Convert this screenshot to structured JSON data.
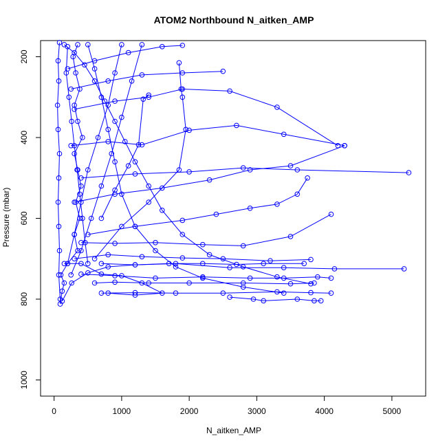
{
  "chart_data": {
    "type": "line",
    "title": "ATOM2 Northbound N_aitken_AMP",
    "xlabel": "N_aitken_AMP",
    "ylabel": "Pressure (mbar)",
    "xlim": [
      -200,
      5500
    ],
    "ylim": [
      1040,
      160
    ],
    "y_reversed": true,
    "grid": false,
    "legend": "none",
    "color": "#0000ff",
    "marker": "open-circle",
    "x_ticks": [
      0,
      1000,
      2000,
      3000,
      4000,
      5000
    ],
    "x_tick_labels": [
      "0",
      "1000",
      "2000",
      "3000",
      "4000",
      "5000"
    ],
    "y_ticks": [
      200,
      400,
      600,
      800,
      1000
    ],
    "y_tick_labels": [
      "200",
      "400",
      "600",
      "800",
      "1000"
    ],
    "series": [
      {
        "points": [
          [
            90,
            812
          ],
          [
            120,
            780
          ],
          [
            150,
            760
          ],
          [
            100,
            740
          ],
          [
            200,
            712
          ],
          [
            350,
            680
          ],
          [
            300,
            640
          ],
          [
            380,
            600
          ],
          [
            320,
            560
          ],
          [
            400,
            520
          ],
          [
            350,
            480
          ],
          [
            300,
            440
          ],
          [
            420,
            400
          ],
          [
            350,
            360
          ],
          [
            300,
            320
          ],
          [
            380,
            280
          ],
          [
            320,
            240
          ],
          [
            280,
            200
          ],
          [
            350,
            170
          ]
        ]
      },
      {
        "points": [
          [
            120,
            805
          ],
          [
            260,
            760
          ],
          [
            500,
            735
          ],
          [
            800,
            720
          ],
          [
            1200,
            715
          ],
          [
            1800,
            712
          ],
          [
            2600,
            722
          ],
          [
            3400,
            722
          ],
          [
            4150,
            725
          ],
          [
            5180,
            725
          ]
        ]
      },
      {
        "points": [
          [
            600,
            760
          ],
          [
            900,
            758
          ],
          [
            1400,
            760
          ],
          [
            2000,
            760
          ],
          [
            2800,
            760
          ],
          [
            3500,
            762
          ],
          [
            3850,
            760
          ]
        ]
      },
      {
        "points": [
          [
            700,
            785
          ],
          [
            1200,
            784
          ],
          [
            1800,
            785
          ],
          [
            2500,
            785
          ],
          [
            3300,
            782
          ],
          [
            3800,
            784
          ],
          [
            4100,
            785
          ]
        ]
      },
      {
        "points": [
          [
            2600,
            795
          ],
          [
            2950,
            800
          ],
          [
            3100,
            804
          ],
          [
            3600,
            800
          ],
          [
            3850,
            804
          ],
          [
            3950,
            804
          ]
        ]
      },
      {
        "points": [
          [
            400,
            738
          ],
          [
            900,
            742
          ],
          [
            1500,
            748
          ],
          [
            2200,
            745
          ],
          [
            2900,
            748
          ],
          [
            3400,
            748
          ],
          [
            3900,
            745
          ],
          [
            4100,
            748
          ]
        ]
      },
      {
        "points": [
          [
            300,
            700
          ],
          [
            800,
            690
          ],
          [
            1300,
            695
          ],
          [
            1900,
            698
          ],
          [
            2500,
            700
          ],
          [
            3200,
            705
          ],
          [
            3800,
            702
          ]
        ]
      },
      {
        "points": [
          [
            400,
            660
          ],
          [
            900,
            662
          ],
          [
            1500,
            660
          ],
          [
            2200,
            665
          ],
          [
            2800,
            668
          ],
          [
            3500,
            645
          ],
          [
            4100,
            590
          ]
        ]
      },
      {
        "points": [
          [
            500,
            640
          ],
          [
            1200,
            620
          ],
          [
            1900,
            605
          ],
          [
            2400,
            590
          ],
          [
            2900,
            575
          ],
          [
            3300,
            565
          ],
          [
            3600,
            540
          ],
          [
            3750,
            500
          ]
        ]
      },
      {
        "points": [
          [
            300,
            560
          ],
          [
            900,
            540
          ],
          [
            1600,
            525
          ],
          [
            2300,
            505
          ],
          [
            2900,
            480
          ],
          [
            3500,
            470
          ],
          [
            4300,
            420
          ]
        ]
      },
      {
        "points": [
          [
            400,
            500
          ],
          [
            1200,
            490
          ],
          [
            2000,
            485
          ],
          [
            2800,
            475
          ],
          [
            3600,
            480
          ],
          [
            5250,
            487
          ]
        ]
      },
      {
        "points": [
          [
            250,
            420
          ],
          [
            800,
            410
          ],
          [
            1300,
            418
          ],
          [
            2000,
            382
          ],
          [
            2700,
            370
          ],
          [
            3400,
            392
          ],
          [
            4300,
            420
          ]
        ]
      },
      {
        "points": [
          [
            300,
            330
          ],
          [
            900,
            310
          ],
          [
            1400,
            300
          ],
          [
            1900,
            280
          ],
          [
            2600,
            285
          ],
          [
            3300,
            325
          ],
          [
            4200,
            420
          ]
        ]
      },
      {
        "points": [
          [
            250,
            280
          ],
          [
            800,
            260
          ],
          [
            1300,
            245
          ],
          [
            1900,
            240
          ],
          [
            2500,
            236
          ]
        ]
      },
      {
        "points": [
          [
            200,
            230
          ],
          [
            600,
            210
          ],
          [
            1100,
            190
          ],
          [
            1600,
            175
          ],
          [
            1900,
            172
          ]
        ]
      },
      {
        "points": [
          [
            150,
            170
          ],
          [
            300,
            190
          ],
          [
            450,
            220
          ],
          [
            600,
            260
          ],
          [
            750,
            310
          ],
          [
            900,
            360
          ],
          [
            1050,
            410
          ],
          [
            1200,
            460
          ],
          [
            1400,
            520
          ],
          [
            1600,
            580
          ],
          [
            1900,
            640
          ],
          [
            2300,
            690
          ],
          [
            2800,
            720
          ],
          [
            3300,
            745
          ],
          [
            3800,
            762
          ]
        ]
      },
      {
        "points": [
          [
            500,
            170
          ],
          [
            600,
            230
          ],
          [
            700,
            300
          ],
          [
            800,
            380
          ],
          [
            900,
            460
          ],
          [
            1000,
            540
          ],
          [
            1200,
            620
          ],
          [
            1500,
            680
          ],
          [
            1800,
            720
          ],
          [
            2200,
            748
          ],
          [
            2800,
            770
          ],
          [
            3400,
            785
          ]
        ]
      },
      {
        "points": [
          [
            1000,
            170
          ],
          [
            900,
            240
          ],
          [
            800,
            320
          ],
          [
            650,
            400
          ],
          [
            500,
            480
          ],
          [
            400,
            560
          ],
          [
            300,
            640
          ],
          [
            200,
            712
          ]
        ]
      },
      {
        "points": [
          [
            1300,
            170
          ],
          [
            1150,
            260
          ],
          [
            1000,
            350
          ],
          [
            850,
            440
          ],
          [
            700,
            520
          ],
          [
            550,
            600
          ],
          [
            400,
            680
          ],
          [
            250,
            740
          ]
        ]
      },
      {
        "points": [
          [
            1400,
            295
          ],
          [
            1320,
            305
          ],
          [
            1250,
            418
          ],
          [
            1100,
            470
          ],
          [
            900,
            530
          ],
          [
            700,
            600
          ]
        ]
      },
      {
        "points": [
          [
            1850,
            215
          ],
          [
            1880,
            280
          ],
          [
            1900,
            300
          ],
          [
            1950,
            380
          ],
          [
            1850,
            480
          ],
          [
            1400,
            560
          ],
          [
            1000,
            620
          ],
          [
            600,
            700
          ]
        ]
      },
      {
        "points": [
          [
            80,
            165
          ],
          [
            60,
            210
          ],
          [
            70,
            260
          ],
          [
            50,
            320
          ],
          [
            60,
            380
          ],
          [
            80,
            440
          ],
          [
            70,
            500
          ],
          [
            60,
            560
          ],
          [
            70,
            620
          ],
          [
            80,
            680
          ],
          [
            70,
            740
          ],
          [
            90,
            800
          ]
        ]
      },
      {
        "points": [
          [
            200,
            175
          ],
          [
            180,
            240
          ],
          [
            220,
            300
          ],
          [
            260,
            360
          ],
          [
            300,
            420
          ],
          [
            340,
            480
          ],
          [
            380,
            540
          ],
          [
            420,
            600
          ],
          [
            460,
            660
          ],
          [
            500,
            712
          ]
        ]
      },
      {
        "points": [
          [
            700,
            712
          ],
          [
            1200,
            715
          ],
          [
            1700,
            712
          ],
          [
            2200,
            712
          ],
          [
            2700,
            714
          ],
          [
            3100,
            712
          ],
          [
            3700,
            712
          ]
        ]
      },
      {
        "points": [
          [
            150,
            712
          ],
          [
            400,
            712
          ],
          [
            700,
            738
          ],
          [
            1000,
            742
          ],
          [
            1300,
            760
          ],
          [
            1600,
            785
          ],
          [
            1200,
            790
          ],
          [
            800,
            785
          ]
        ]
      }
    ]
  }
}
